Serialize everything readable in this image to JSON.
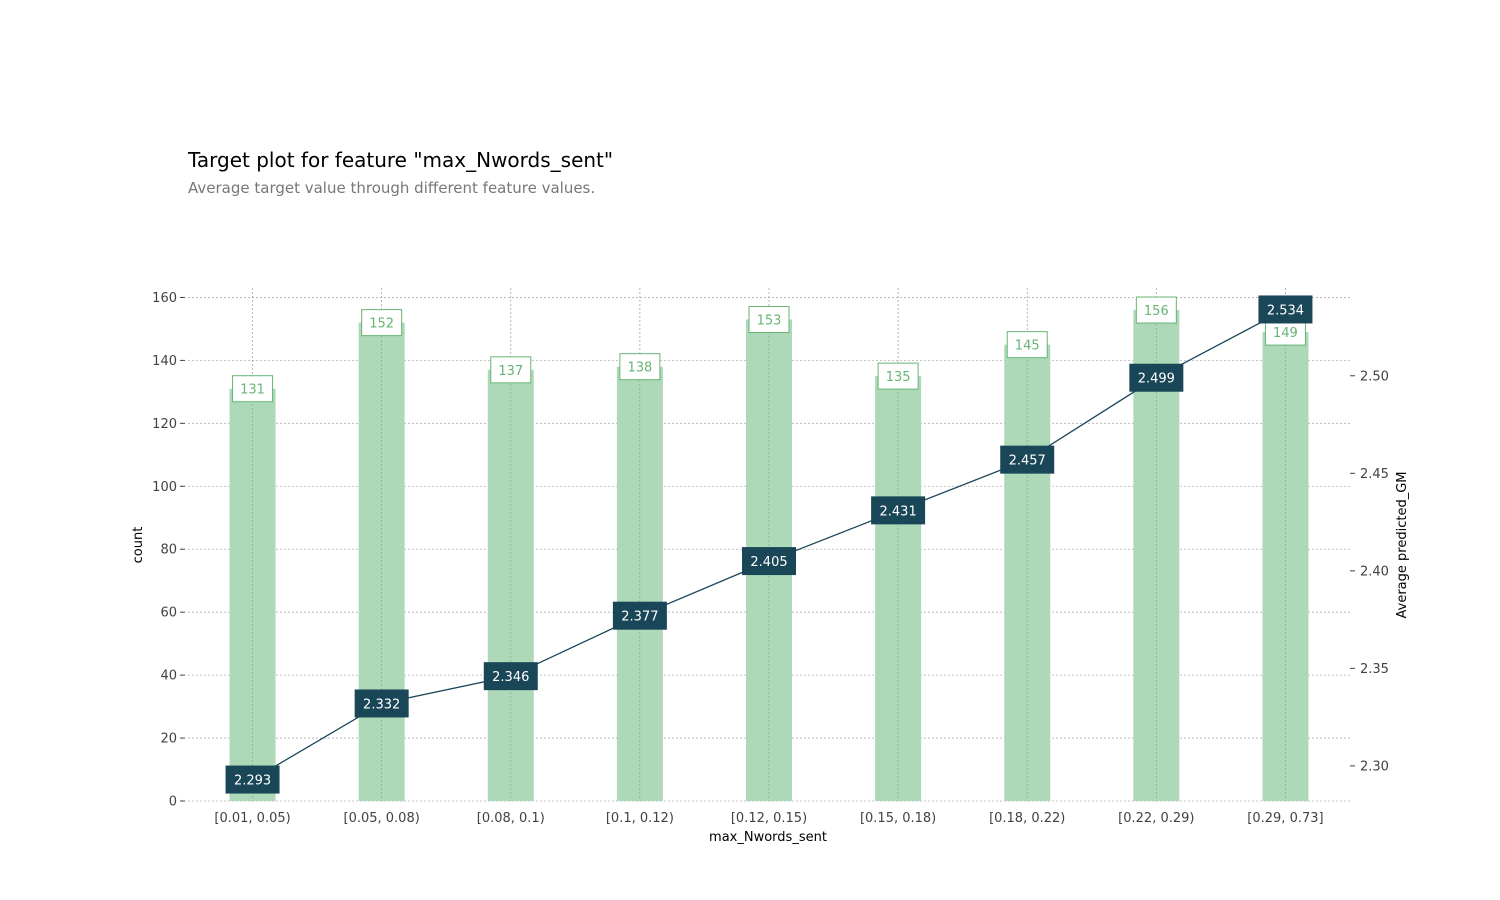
{
  "chart_data": {
    "type": "bar+line",
    "title": "Target plot for feature \"max_Nwords_sent\"",
    "subtitle": "Average target value through different feature values.",
    "xlabel": "max_Nwords_sent",
    "ylabel_left": "count",
    "ylabel_right": "Average predicted_GM",
    "categories": [
      "[0.01, 0.05)",
      "[0.05, 0.08)",
      "[0.08, 0.1)",
      "[0.1, 0.12)",
      "[0.12, 0.15)",
      "[0.15, 0.18)",
      "[0.18, 0.22)",
      "[0.22, 0.29)",
      "[0.29, 0.73]"
    ],
    "series": [
      {
        "name": "count",
        "type": "bar",
        "values": [
          131,
          152,
          137,
          138,
          153,
          135,
          145,
          156,
          149
        ],
        "labels": [
          "131",
          "152",
          "137",
          "138",
          "153",
          "135",
          "145",
          "156",
          "149"
        ]
      },
      {
        "name": "Average predicted_GM",
        "type": "line",
        "values": [
          2.293,
          2.332,
          2.346,
          2.377,
          2.405,
          2.431,
          2.457,
          2.499,
          2.534
        ],
        "labels": [
          "2.293",
          "2.332",
          "2.346",
          "2.377",
          "2.405",
          "2.431",
          "2.457",
          "2.499",
          "2.534"
        ]
      }
    ],
    "ylim_left": [
      0,
      163
    ],
    "yticks_left": [
      "0",
      "20",
      "40",
      "60",
      "80",
      "100",
      "120",
      "140",
      "160"
    ],
    "ylim_right": [
      2.282,
      2.545
    ],
    "yticks_right": [
      "2.30",
      "2.35",
      "2.40",
      "2.45",
      "2.50"
    ],
    "grid": true,
    "colors": {
      "bar": "#add9b8",
      "bar_label": "#66b573",
      "line": "#1a4758"
    }
  }
}
